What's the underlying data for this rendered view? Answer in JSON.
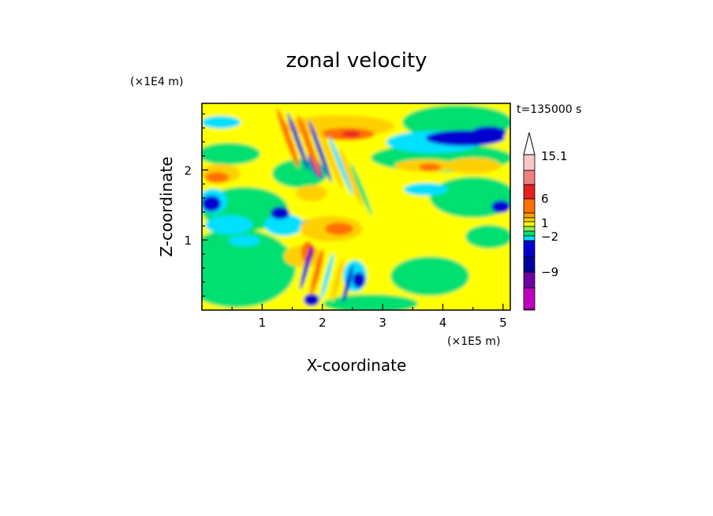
{
  "chart_data": {
    "type": "heatmap",
    "title": "zonal velocity",
    "xlabel": "X-coordinate",
    "ylabel": "Z-coordinate",
    "x_unit": "(×1E5 m)",
    "y_unit": "(×1E4 m)",
    "time_label": "t=135000 s",
    "xlim": [
      0,
      5.12
    ],
    "ylim": [
      0,
      2.95
    ],
    "x_ticks": [
      "1",
      "2",
      "3",
      "4",
      "5"
    ],
    "x_tick_values": [
      1,
      2,
      3,
      4,
      5
    ],
    "y_ticks": [
      "1",
      "2"
    ],
    "y_tick_values": [
      1,
      2
    ],
    "colorbar": {
      "labels": [
        "15.1",
        "6",
        "1",
        "−2",
        "−9"
      ],
      "label_values": [
        15.1,
        6,
        1,
        -2,
        -9
      ],
      "colors_top_to_bottom": [
        "#f8c8c8",
        "#f08080",
        "#e82020",
        "#ff7000",
        "#ffa000",
        "#ffd000",
        "#ffff00",
        "#90ee50",
        "#00e070",
        "#00e0ff",
        "#0000d0",
        "#0000a0",
        "#7000a0",
        "#c000c0",
        "#ff00b0"
      ],
      "extend_top": true
    },
    "field_levels": [
      {
        "name": "strong-negative",
        "color": "#0000d0"
      },
      {
        "name": "negative",
        "color": "#00e0ff"
      },
      {
        "name": "weak-negative",
        "color": "#00e070"
      },
      {
        "name": "weak-positive",
        "color": "#ffff00"
      },
      {
        "name": "positive",
        "color": "#ffd000"
      },
      {
        "name": "strong-positive",
        "color": "#ff7000"
      },
      {
        "name": "very-strong-positive",
        "color": "#e82020"
      }
    ]
  }
}
